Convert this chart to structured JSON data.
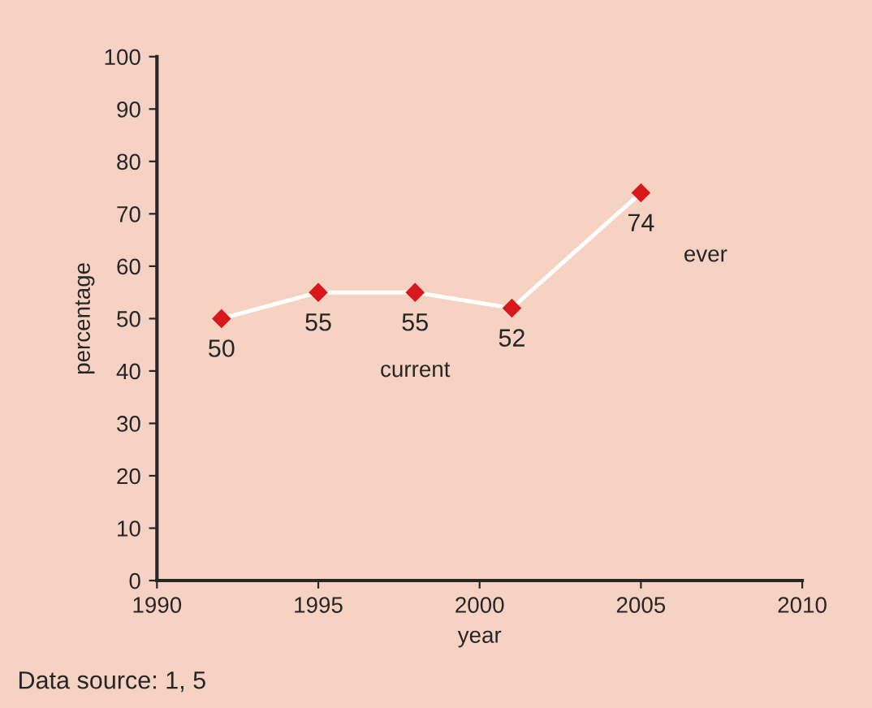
{
  "chart_data": {
    "type": "line",
    "xlabel": "year",
    "ylabel": "percentage",
    "x": [
      1992,
      1995,
      1998,
      2001,
      2005
    ],
    "series": [
      {
        "color": "#ffffff",
        "colors": [
          "#d7191c",
          "#d7191c",
          "#d7191c",
          "#d7191c",
          "#d7191c"
        ],
        "values": [
          50,
          55,
          55,
          52,
          74
        ]
      }
    ],
    "marker": "diamond",
    "data_labels": true,
    "xlim": [
      1990,
      2010
    ],
    "xticks": [
      1990,
      1995,
      2000,
      2005,
      2010
    ],
    "ylim": [
      0,
      100
    ],
    "yticks": [
      0,
      10,
      20,
      30,
      40,
      50,
      60,
      70,
      80,
      90,
      100
    ],
    "grid": false,
    "legend": false,
    "annotations": [
      "current",
      "ever",
      "Data source: 1, 5"
    ]
  }
}
